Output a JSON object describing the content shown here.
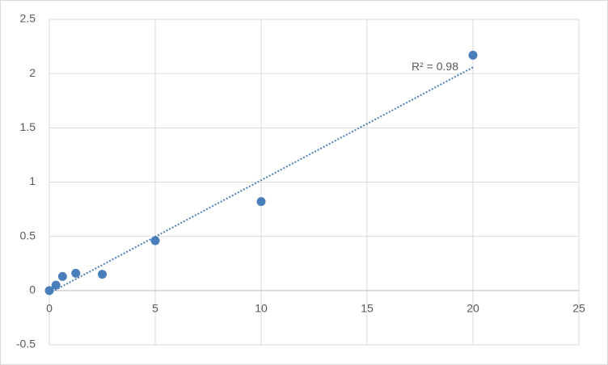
{
  "chart_data": {
    "type": "scatter",
    "x": [
      0,
      0.312,
      0.625,
      1.25,
      2.5,
      5,
      10,
      20
    ],
    "series": [
      {
        "color": "#4a7ebb",
        "values": [
          0,
          0.05,
          0.13,
          0.16,
          0.15,
          0.46,
          0.82,
          2.17
        ]
      }
    ],
    "xlim": [
      0,
      25
    ],
    "xticks": [
      0,
      5,
      10,
      15,
      20,
      25
    ],
    "ylim": [
      -0.5,
      2.5
    ],
    "yticks": [
      -0.5,
      0,
      0.5,
      1,
      1.5,
      2,
      2.5
    ],
    "grid": true,
    "trendline": {
      "type": "linear",
      "label": "R² = 0.98"
    }
  }
}
